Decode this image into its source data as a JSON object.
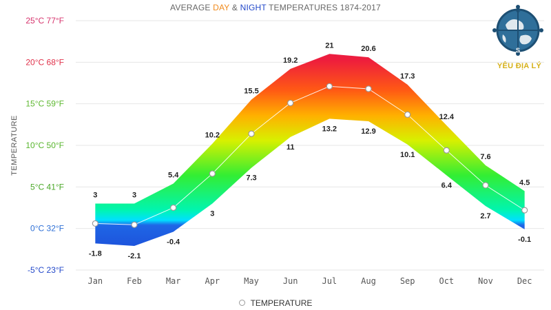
{
  "title": {
    "part1": "AVERAGE ",
    "day": "DAY",
    "part2": " & ",
    "night": "NIGHT",
    "part3": " TEMPERATURES 1874-2017"
  },
  "colors": {
    "day_title": "#f08a1c",
    "night_title": "#2147c9",
    "grid": "#e6e6e6",
    "mean_line": "#ffffff"
  },
  "logo": {
    "text": "YÊU ĐỊA LÝ",
    "letters": [
      "C",
      "S"
    ]
  },
  "legend": {
    "label": "TEMPERATURE"
  },
  "chart_data": {
    "type": "area",
    "categories": [
      "Jan",
      "Feb",
      "Mar",
      "Apr",
      "May",
      "Jun",
      "Jul",
      "Aug",
      "Sep",
      "Oct",
      "Nov",
      "Dec"
    ],
    "series": [
      {
        "name": "DAY",
        "values": [
          3,
          3,
          5.4,
          10.2,
          15.5,
          19.2,
          21,
          20.6,
          17.3,
          12.4,
          7.6,
          4.5
        ]
      },
      {
        "name": "NIGHT",
        "values": [
          -1.8,
          -2.1,
          -0.4,
          3,
          7.3,
          11,
          13.2,
          12.9,
          10.1,
          6.4,
          2.7,
          -0.1
        ]
      },
      {
        "name": "TEMPERATURE",
        "values": [
          0.6,
          0.45,
          2.5,
          6.6,
          11.4,
          15.1,
          17.1,
          16.8,
          13.7,
          9.4,
          5.2,
          2.2
        ]
      }
    ],
    "ylabel": "TEMPERATURE",
    "ylim": [
      -5,
      25
    ],
    "yticks": [
      {
        "value": 25,
        "label": "25°C 77°F",
        "color": "#d6336c"
      },
      {
        "value": 20,
        "label": "20°C 68°F",
        "color": "#e0314a"
      },
      {
        "value": 15,
        "label": "15°C 59°F",
        "color": "#5db830"
      },
      {
        "value": 10,
        "label": "10°C 50°F",
        "color": "#57b52c"
      },
      {
        "value": 5,
        "label": "5°C 41°F",
        "color": "#4aa828"
      },
      {
        "value": 0,
        "label": "0°C 32°F",
        "color": "#2d6fd6"
      },
      {
        "value": -5,
        "label": "-5°C 23°F",
        "color": "#2147c9"
      }
    ],
    "grid": true,
    "legend_position": "bottom-center"
  }
}
